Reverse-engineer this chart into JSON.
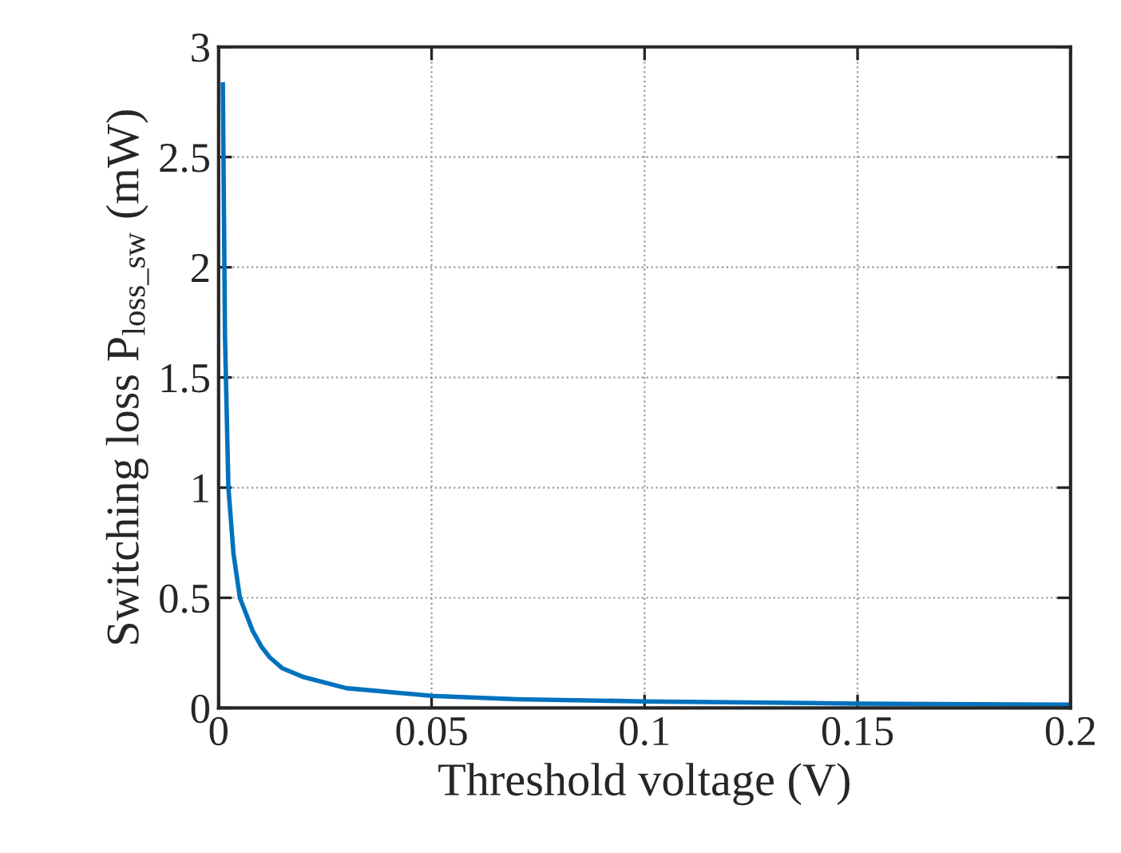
{
  "chart_data": {
    "type": "line",
    "xlabel": "Threshold voltage (V)",
    "ylabel": "Switching loss P$_{loss_sw}$ (mW)",
    "xlim": [
      0,
      0.2
    ],
    "ylim": [
      0,
      3
    ],
    "xticks": [
      0,
      0.05,
      0.1,
      0.15,
      0.2
    ],
    "yticks": [
      0,
      0.5,
      1,
      1.5,
      2,
      2.5,
      3
    ],
    "grid": true,
    "series": [
      {
        "color": "#0072bd",
        "x": [
          0.001,
          0.0015,
          0.0023,
          0.0035,
          0.005,
          0.008,
          0.01,
          0.012,
          0.015,
          0.02,
          0.03,
          0.05,
          0.07,
          0.1,
          0.15,
          0.2
        ],
        "values": [
          2.83,
          1.69,
          1.0,
          0.7,
          0.5,
          0.35,
          0.28,
          0.23,
          0.18,
          0.14,
          0.09,
          0.055,
          0.04,
          0.03,
          0.02,
          0.015
        ]
      }
    ]
  }
}
